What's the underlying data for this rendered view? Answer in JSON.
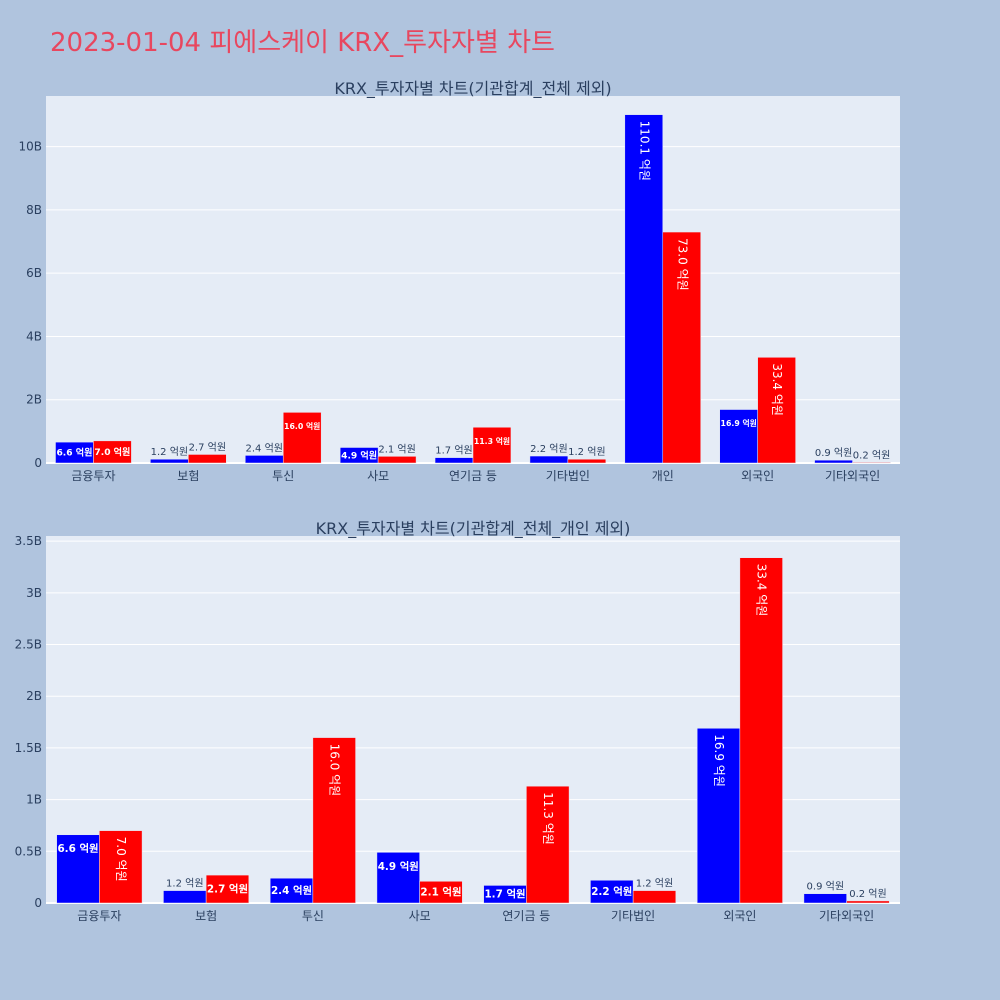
{
  "page": {
    "title": "2023-01-04 피에스케이 KRX_투자자별 차트"
  },
  "colors": {
    "background": "#b0c4de",
    "plot_background": "#e5ecf6",
    "title": "#e8475f",
    "series_a": "#0000ff",
    "series_b": "#ff0000",
    "axis_text": "#2a3f5f",
    "grid": "#ffffff"
  },
  "chart_data": [
    {
      "type": "bar",
      "title": "KRX_투자자별 차트(기관합계_전체 제외)",
      "categories": [
        "금융투자",
        "보험",
        "투신",
        "사모",
        "연기금 등",
        "기타법인",
        "개인",
        "외국인",
        "기타외국인"
      ],
      "ylim": [
        0,
        11.6
      ],
      "yticks": [
        0,
        2,
        4,
        6,
        8,
        10
      ],
      "ytick_labels": [
        "0",
        "2B",
        "4B",
        "6B",
        "8B",
        "10B"
      ],
      "grid": true,
      "series": [
        {
          "color": "#0000ff",
          "values": [
            0.66,
            0.12,
            0.24,
            0.49,
            0.17,
            0.22,
            11.01,
            1.69,
            0.09
          ],
          "labels": [
            "6.6 억원",
            "1.2 억원",
            "2.4 억원",
            "4.9 억원",
            "1.7 억원",
            "2.2 억원",
            "110.1 억원",
            "16.9 억원",
            "0.9 억원"
          ]
        },
        {
          "color": "#ff0000",
          "values": [
            0.7,
            0.27,
            1.6,
            0.21,
            1.13,
            0.12,
            7.3,
            3.34,
            0.02
          ],
          "labels": [
            "7.0 억원",
            "2.7 억원",
            "16.0 억원",
            "2.1 억원",
            "11.3 억원",
            "1.2 억원",
            "73.0 억원",
            "33.4 억원",
            "0.2 억원"
          ]
        }
      ]
    },
    {
      "type": "bar",
      "title": "KRX_투자자별 차트(기관합계_전체_개인 제외)",
      "categories": [
        "금융투자",
        "보험",
        "투신",
        "사모",
        "연기금 등",
        "기타법인",
        "외국인",
        "기타외국인"
      ],
      "ylim": [
        0,
        3.55
      ],
      "yticks": [
        0,
        0.5,
        1,
        1.5,
        2,
        2.5,
        3,
        3.5
      ],
      "ytick_labels": [
        "0",
        "0.5B",
        "1B",
        "1.5B",
        "2B",
        "2.5B",
        "3B",
        "3.5B"
      ],
      "grid": true,
      "series": [
        {
          "color": "#0000ff",
          "values": [
            0.66,
            0.12,
            0.24,
            0.49,
            0.17,
            0.22,
            1.69,
            0.09
          ],
          "labels": [
            "6.6 억원",
            "1.2 억원",
            "2.4 억원",
            "4.9 억원",
            "1.7 억원",
            "2.2 억원",
            "16.9 억원",
            "0.9 억원"
          ]
        },
        {
          "color": "#ff0000",
          "values": [
            0.7,
            0.27,
            1.6,
            0.21,
            1.13,
            0.12,
            3.34,
            0.02
          ],
          "labels": [
            "7.0 억원",
            "2.7 억원",
            "16.0 억원",
            "2.1 억원",
            "11.3 억원",
            "1.2 억원",
            "33.4 억원",
            "0.2 억원"
          ]
        }
      ]
    }
  ]
}
